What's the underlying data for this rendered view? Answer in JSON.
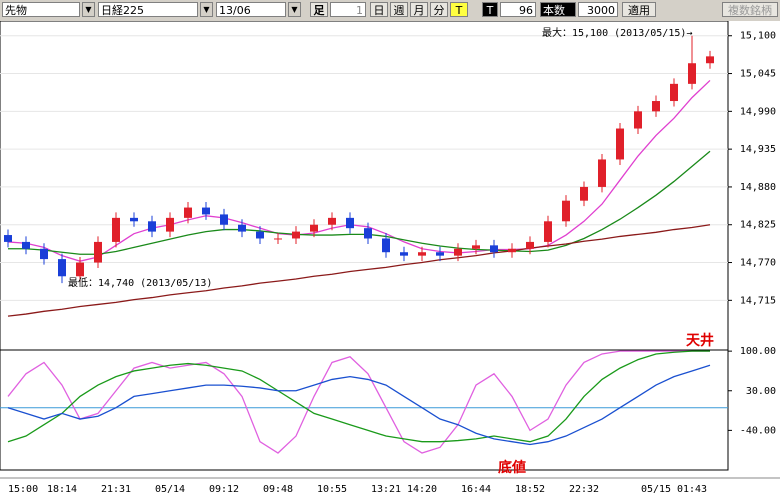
{
  "toolbar": {
    "market": "先物",
    "symbol": "日経225",
    "contract": "13/06",
    "bar_label": "足",
    "bar_value": "1",
    "daily": "日",
    "weekly": "週",
    "monthly": "月",
    "minute": "分",
    "tick": "T",
    "tick2": "T",
    "count": "96",
    "count_label": "本数",
    "bars": "3000",
    "apply": "適用",
    "multi": "複数銘柄"
  },
  "chart_data": [
    {
      "type": "candlestick",
      "open": [
        14810,
        14800,
        14790,
        14775,
        14750,
        14770,
        14800,
        14835,
        14830,
        14815,
        14835,
        14850,
        14840,
        14825,
        14815,
        14805,
        14805,
        14815,
        14825,
        14835,
        14820,
        14805,
        14785,
        14780,
        14785,
        14780,
        14790,
        14795,
        14785,
        14790,
        14800,
        14830,
        14860,
        14880,
        14920,
        14965,
        14990,
        15005,
        15030,
        15060
      ],
      "high": [
        14818,
        14808,
        14798,
        14783,
        14778,
        14808,
        14843,
        14843,
        14838,
        14843,
        14858,
        14858,
        14848,
        14833,
        14823,
        14813,
        14823,
        14833,
        14843,
        14843,
        14828,
        14813,
        14793,
        14793,
        14793,
        14798,
        14803,
        14803,
        14798,
        14808,
        14838,
        14868,
        14888,
        14928,
        14973,
        14998,
        15013,
        15038,
        15100,
        15078
      ],
      "low": [
        14792,
        14782,
        14767,
        14740,
        14742,
        14762,
        14792,
        14822,
        14807,
        14807,
        14827,
        14832,
        14817,
        14807,
        14797,
        14797,
        14797,
        14807,
        14817,
        14812,
        14797,
        14777,
        14772,
        14772,
        14772,
        14772,
        14782,
        14777,
        14777,
        14782,
        14792,
        14822,
        14852,
        14872,
        14912,
        14957,
        14982,
        14997,
        15022,
        15052
      ],
      "close": [
        14800,
        14790,
        14775,
        14750,
        14770,
        14800,
        14835,
        14830,
        14815,
        14835,
        14850,
        14840,
        14825,
        14815,
        14805,
        14805,
        14815,
        14825,
        14835,
        14820,
        14805,
        14785,
        14780,
        14785,
        14780,
        14790,
        14795,
        14785,
        14790,
        14800,
        14830,
        14860,
        14880,
        14920,
        14965,
        14990,
        15005,
        15030,
        15060,
        15070
      ],
      "up_color": "#e0202a",
      "down_color": "#1a3fd8",
      "series": [
        {
          "color": "#e040d0",
          "values": [
            14800,
            14798,
            14792,
            14780,
            14772,
            14778,
            14795,
            14812,
            14820,
            14825,
            14832,
            14838,
            14835,
            14828,
            14820,
            14812,
            14810,
            14813,
            14820,
            14825,
            14822,
            14812,
            14800,
            14790,
            14786,
            14784,
            14786,
            14789,
            14789,
            14790,
            14795,
            14810,
            14830,
            14855,
            14890,
            14925,
            14955,
            14980,
            15010,
            15035
          ]
        },
        {
          "color": "#1a8a1a",
          "values": [
            14790,
            14790,
            14788,
            14785,
            14782,
            14782,
            14786,
            14792,
            14798,
            14804,
            14810,
            14815,
            14818,
            14818,
            14816,
            14813,
            14811,
            14810,
            14810,
            14811,
            14811,
            14808,
            14803,
            14798,
            14794,
            14791,
            14789,
            14788,
            14787,
            14786,
            14788,
            14795,
            14805,
            14818,
            14833,
            14850,
            14868,
            14888,
            14910,
            14932
          ]
        },
        {
          "color": "#8b1a1a",
          "values": [
            14692,
            14695,
            14699,
            14702,
            14706,
            14709,
            14712,
            14716,
            14719,
            14723,
            14726,
            14729,
            14733,
            14736,
            14740,
            14743,
            14746,
            14750,
            14753,
            14757,
            14760,
            14763,
            14767,
            14770,
            14774,
            14777,
            14780,
            14784,
            14787,
            14791,
            14794,
            14797,
            14801,
            14804,
            14808,
            14811,
            14814,
            14818,
            14821,
            14825
          ]
        }
      ],
      "ylim": [
        14650,
        15120
      ],
      "yticks": [
        {
          "value": 15100,
          "label": "15,100"
        },
        {
          "value": 15045,
          "label": "15,045"
        },
        {
          "value": 14990,
          "label": "14,990"
        },
        {
          "value": 14935,
          "label": "14,935"
        },
        {
          "value": 14880,
          "label": "14,880"
        },
        {
          "value": 14825,
          "label": "14,825"
        },
        {
          "value": 14770,
          "label": "14,770"
        },
        {
          "value": 14715,
          "label": "14,715"
        }
      ],
      "grid": true,
      "max_annotation": "最大：15,100 (2013/05/15)→",
      "min_annotation": "最低：14,740 (2013/05/13)"
    },
    {
      "type": "line",
      "categories": [
        "15:00",
        null,
        null,
        "18:14",
        null,
        null,
        "21:31",
        null,
        null,
        "05/14",
        null,
        null,
        "09:12",
        null,
        null,
        "09:48",
        null,
        null,
        "10:55",
        null,
        null,
        "13:21",
        null,
        "14:20",
        null,
        null,
        "16:44",
        null,
        null,
        "18:52",
        null,
        null,
        "22:32",
        null,
        null,
        null,
        "05/15",
        null,
        "01:43",
        null
      ],
      "series": [
        {
          "color": "#e060e0",
          "values": [
            20,
            60,
            80,
            40,
            -20,
            -10,
            30,
            70,
            80,
            70,
            75,
            80,
            60,
            20,
            -60,
            -80,
            -50,
            20,
            80,
            90,
            60,
            0,
            -60,
            -80,
            -70,
            -30,
            40,
            60,
            20,
            -40,
            -20,
            40,
            80,
            95,
            100,
            100,
            100,
            100,
            100,
            100
          ]
        },
        {
          "color": "#1a9a1a",
          "values": [
            -60,
            -50,
            -30,
            -10,
            20,
            40,
            55,
            65,
            70,
            75,
            78,
            75,
            70,
            65,
            50,
            30,
            10,
            -10,
            -20,
            -30,
            -40,
            -50,
            -55,
            -60,
            -60,
            -58,
            -55,
            -50,
            -55,
            -60,
            -50,
            -20,
            20,
            50,
            70,
            85,
            95,
            98,
            100,
            100
          ]
        },
        {
          "color": "#1a50d0",
          "values": [
            0,
            -10,
            -20,
            -10,
            -20,
            -15,
            0,
            20,
            25,
            30,
            35,
            40,
            40,
            38,
            35,
            30,
            30,
            40,
            50,
            55,
            50,
            40,
            20,
            0,
            -20,
            -30,
            -45,
            -55,
            -60,
            -65,
            -60,
            -50,
            -35,
            -20,
            0,
            20,
            40,
            55,
            65,
            75
          ]
        }
      ],
      "ylim": [
        -110,
        102
      ],
      "yticks": [
        {
          "value": 100,
          "label": "100.00"
        },
        {
          "value": 30,
          "label": "30.00"
        },
        {
          "value": -40,
          "label": "-40.00"
        }
      ],
      "hline": 0,
      "top_annotation": "天井",
      "bottom_annotation": "底値"
    }
  ]
}
